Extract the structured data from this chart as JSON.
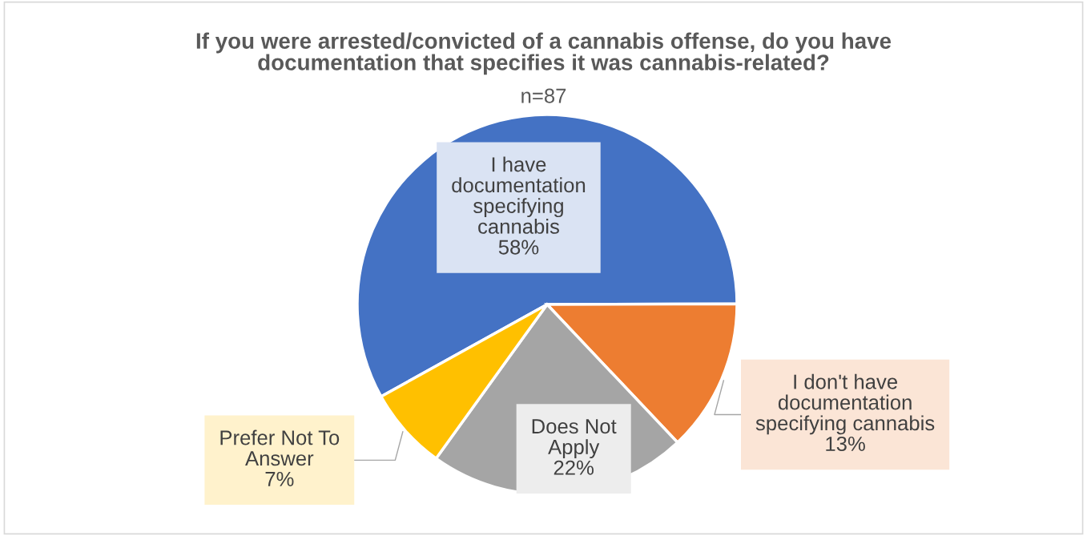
{
  "chart_data": {
    "type": "pie",
    "title": "If you were arrested/convicted of a cannabis offense, do you have\ndocumentation that specifies it was cannabis-related?",
    "subtitle": "n=87",
    "categories": [
      "I have\ndocumentation\nspecifying\ncannabis",
      "I don't have\ndocumentation\nspecifying cannabis",
      "Does Not\nApply",
      "Prefer Not To\nAnswer"
    ],
    "values": [
      58,
      13,
      22,
      7
    ],
    "value_labels": [
      "58%",
      "13%",
      "22%",
      "7%"
    ],
    "colors": [
      "#4472c4",
      "#ed7d31",
      "#a5a5a5",
      "#ffc000"
    ],
    "legend": false
  }
}
